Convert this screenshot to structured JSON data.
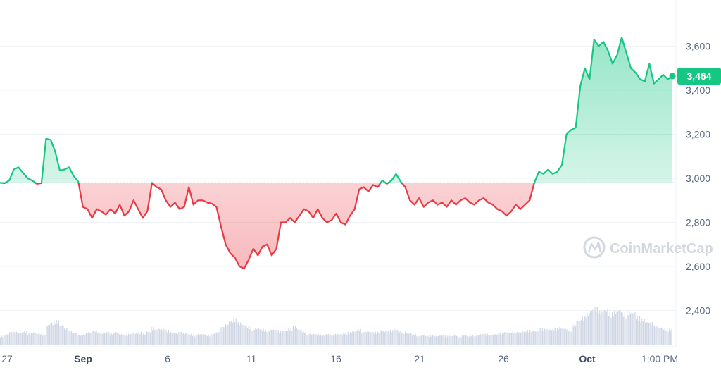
{
  "watermark": "CoinMarketCap",
  "colors": {
    "up": "#16c784",
    "down": "#ea3943",
    "volume": "#cfd6e4",
    "grid": "#eff2f5",
    "text": "#58667e"
  },
  "chart_data": {
    "type": "line",
    "title": "",
    "xlabel": "",
    "ylabel": "",
    "x_ticks": [
      "27",
      "Sep",
      "6",
      "11",
      "16",
      "21",
      "26",
      "Oct",
      "1:00 PM"
    ],
    "x_ticks_bold": [
      "Sep",
      "Oct"
    ],
    "y_ticks": [
      "2,400",
      "2,600",
      "2,800",
      "3,000",
      "3,200",
      "3,400",
      "3,600"
    ],
    "ylim": [
      2400,
      3650
    ],
    "baseline": 2980,
    "current_price": 3464,
    "current_price_label": "3,464",
    "series": [
      {
        "values": [
          [
            0,
            2980
          ],
          [
            1,
            2978
          ],
          [
            2,
            2990
          ],
          [
            3,
            3040
          ],
          [
            4,
            3050
          ],
          [
            5,
            3025
          ],
          [
            6,
            3000
          ],
          [
            7,
            2990
          ],
          [
            8,
            2975
          ],
          [
            9,
            2978
          ],
          [
            10,
            3180
          ],
          [
            11,
            3175
          ],
          [
            12,
            3120
          ],
          [
            13,
            3035
          ],
          [
            14,
            3040
          ],
          [
            15,
            3050
          ],
          [
            16,
            3010
          ],
          [
            17,
            2985
          ],
          [
            18,
            2870
          ],
          [
            19,
            2860
          ],
          [
            20,
            2820
          ],
          [
            21,
            2860
          ],
          [
            22,
            2850
          ],
          [
            23,
            2835
          ],
          [
            24,
            2860
          ],
          [
            25,
            2840
          ],
          [
            26,
            2880
          ],
          [
            27,
            2830
          ],
          [
            28,
            2850
          ],
          [
            29,
            2900
          ],
          [
            30,
            2860
          ],
          [
            31,
            2820
          ],
          [
            32,
            2850
          ],
          [
            33,
            2980
          ],
          [
            34,
            2960
          ],
          [
            35,
            2950
          ],
          [
            36,
            2900
          ],
          [
            37,
            2870
          ],
          [
            38,
            2890
          ],
          [
            39,
            2860
          ],
          [
            40,
            2870
          ],
          [
            41,
            2960
          ],
          [
            42,
            2880
          ],
          [
            43,
            2900
          ],
          [
            44,
            2900
          ],
          [
            45,
            2890
          ],
          [
            46,
            2885
          ],
          [
            47,
            2870
          ],
          [
            48,
            2780
          ],
          [
            49,
            2700
          ],
          [
            50,
            2660
          ],
          [
            51,
            2640
          ],
          [
            52,
            2600
          ],
          [
            53,
            2590
          ],
          [
            54,
            2630
          ],
          [
            55,
            2680
          ],
          [
            56,
            2650
          ],
          [
            57,
            2690
          ],
          [
            58,
            2700
          ],
          [
            59,
            2650
          ],
          [
            60,
            2680
          ],
          [
            61,
            2800
          ],
          [
            62,
            2800
          ],
          [
            63,
            2820
          ],
          [
            64,
            2800
          ],
          [
            65,
            2830
          ],
          [
            66,
            2860
          ],
          [
            67,
            2850
          ],
          [
            68,
            2820
          ],
          [
            69,
            2860
          ],
          [
            70,
            2820
          ],
          [
            71,
            2800
          ],
          [
            72,
            2810
          ],
          [
            73,
            2840
          ],
          [
            74,
            2800
          ],
          [
            75,
            2790
          ],
          [
            76,
            2830
          ],
          [
            77,
            2860
          ],
          [
            78,
            2950
          ],
          [
            79,
            2960
          ],
          [
            80,
            2940
          ],
          [
            81,
            2970
          ],
          [
            82,
            2960
          ],
          [
            83,
            2990
          ],
          [
            84,
            2975
          ],
          [
            85,
            2990
          ],
          [
            86,
            3020
          ],
          [
            87,
            2985
          ],
          [
            88,
            2960
          ],
          [
            89,
            2900
          ],
          [
            90,
            2880
          ],
          [
            91,
            2910
          ],
          [
            92,
            2870
          ],
          [
            93,
            2890
          ],
          [
            94,
            2900
          ],
          [
            95,
            2880
          ],
          [
            96,
            2890
          ],
          [
            97,
            2870
          ],
          [
            98,
            2900
          ],
          [
            99,
            2880
          ],
          [
            100,
            2900
          ],
          [
            101,
            2910
          ],
          [
            102,
            2890
          ],
          [
            103,
            2880
          ],
          [
            104,
            2900
          ],
          [
            105,
            2910
          ],
          [
            106,
            2890
          ],
          [
            107,
            2880
          ],
          [
            108,
            2860
          ],
          [
            109,
            2850
          ],
          [
            110,
            2830
          ],
          [
            111,
            2850
          ],
          [
            112,
            2880
          ],
          [
            113,
            2860
          ],
          [
            114,
            2880
          ],
          [
            115,
            2900
          ],
          [
            116,
            2980
          ],
          [
            117,
            3030
          ],
          [
            118,
            3020
          ],
          [
            119,
            3040
          ],
          [
            120,
            3020
          ],
          [
            121,
            3030
          ],
          [
            122,
            3060
          ],
          [
            123,
            3200
          ],
          [
            124,
            3220
          ],
          [
            125,
            3230
          ],
          [
            126,
            3420
          ],
          [
            127,
            3500
          ],
          [
            128,
            3450
          ],
          [
            129,
            3630
          ],
          [
            130,
            3600
          ],
          [
            131,
            3620
          ],
          [
            132,
            3580
          ],
          [
            133,
            3520
          ],
          [
            134,
            3560
          ],
          [
            135,
            3640
          ],
          [
            136,
            3570
          ],
          [
            137,
            3500
          ],
          [
            138,
            3480
          ],
          [
            139,
            3450
          ],
          [
            140,
            3440
          ],
          [
            141,
            3520
          ],
          [
            142,
            3430
          ],
          [
            143,
            3450
          ],
          [
            144,
            3470
          ],
          [
            145,
            3450
          ],
          [
            146,
            3464
          ]
        ]
      }
    ],
    "volume": [
      10,
      12,
      14,
      14,
      13,
      15,
      13,
      14,
      13,
      12,
      22,
      24,
      26,
      22,
      18,
      15,
      13,
      11,
      13,
      14,
      16,
      15,
      13,
      14,
      13,
      14,
      12,
      11,
      12,
      13,
      14,
      12,
      15,
      19,
      18,
      17,
      16,
      14,
      13,
      14,
      13,
      12,
      11,
      12,
      12,
      11,
      13,
      14,
      19,
      22,
      26,
      28,
      24,
      22,
      20,
      18,
      18,
      17,
      16,
      17,
      16,
      15,
      16,
      18,
      20,
      17,
      15,
      13,
      12,
      12,
      11,
      12,
      11,
      12,
      12,
      13,
      14,
      15,
      17,
      16,
      15,
      14,
      14,
      16,
      15,
      16,
      17,
      15,
      14,
      13,
      12,
      11,
      11,
      10,
      11,
      10,
      11,
      10,
      10,
      11,
      10,
      11,
      10,
      11,
      11,
      12,
      12,
      11,
      12,
      13,
      14,
      14,
      15,
      14,
      15,
      16,
      16,
      15,
      18,
      17,
      17,
      18,
      19,
      18,
      17,
      22,
      26,
      30,
      34,
      38,
      40,
      36,
      38,
      34,
      36,
      38,
      34,
      36,
      35,
      30,
      28,
      25,
      24,
      20,
      19,
      18,
      17
    ]
  }
}
